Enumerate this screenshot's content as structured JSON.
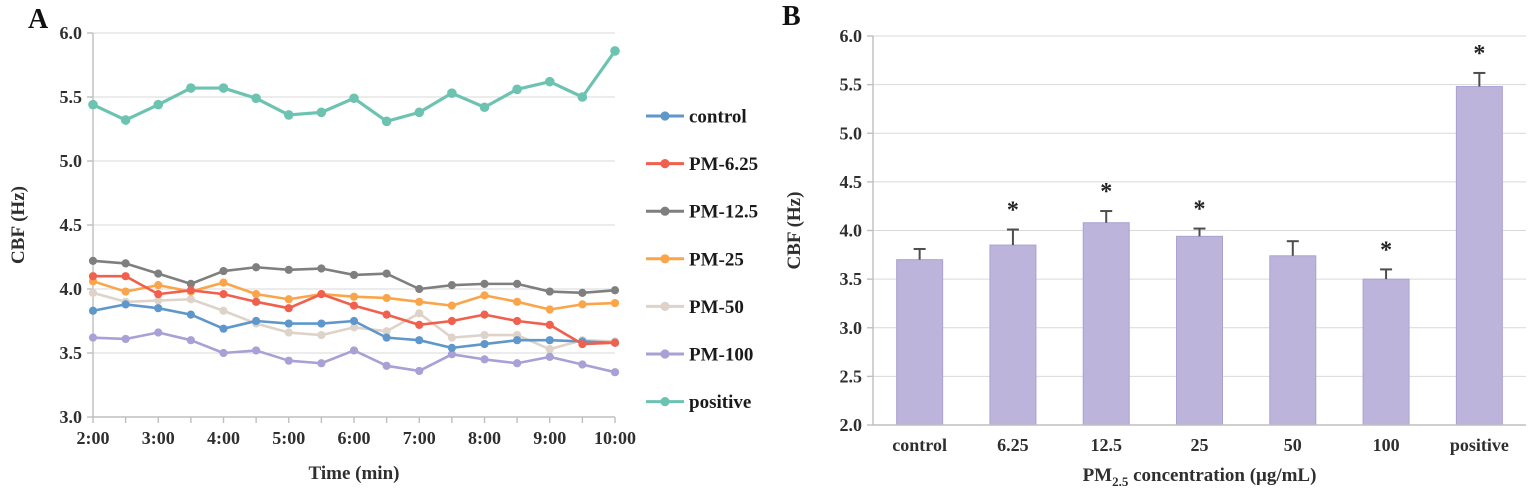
{
  "figure": {
    "panel_a_label": "A",
    "panel_b_label": "B"
  },
  "colors": {
    "background": "#ffffff",
    "gridline": "#d9d9d9",
    "axis": "#bfbfbf",
    "error_bar": "#4d4d4d",
    "tick_text": "#2f2f2f",
    "bar_fill": "#bdb4dc",
    "bar_edge": "#aba1d3"
  },
  "chart_data": [
    {
      "type": "line",
      "panel": "A",
      "title": "",
      "xlabel": "Time (min)",
      "ylabel": "CBF (Hz)",
      "ylim": [
        3.0,
        6.0
      ],
      "ytick_step": 0.5,
      "y_tick_labels": [
        "3.0",
        "3.5",
        "4.0",
        "4.5",
        "5.0",
        "5.5",
        "6.0"
      ],
      "x": [
        "2:00",
        "2:30",
        "3:00",
        "3:30",
        "4:00",
        "4:30",
        "5:00",
        "5:30",
        "6:00",
        "6:30",
        "7:00",
        "7:30",
        "8:00",
        "8:30",
        "9:00",
        "9:30",
        "10:00"
      ],
      "x_tick_labels": [
        "2:00",
        "3:00",
        "4:00",
        "5:00",
        "6:00",
        "7:00",
        "8:00",
        "9:00",
        "10:00"
      ],
      "grid": true,
      "legend_position": "right-outside",
      "marker": "circle",
      "series": [
        {
          "name": "control",
          "color": "#6097cb",
          "values": [
            3.83,
            3.88,
            3.85,
            3.8,
            3.69,
            3.75,
            3.73,
            3.73,
            3.75,
            3.62,
            3.6,
            3.54,
            3.57,
            3.6,
            3.6,
            3.59,
            3.58
          ]
        },
        {
          "name": "PM-6.25",
          "color": "#f0604d",
          "values": [
            4.1,
            4.1,
            3.96,
            3.99,
            3.96,
            3.9,
            3.85,
            3.96,
            3.87,
            3.8,
            3.72,
            3.75,
            3.8,
            3.75,
            3.72,
            3.57,
            3.58
          ]
        },
        {
          "name": "PM-12.5",
          "color": "#7f7f7f",
          "values": [
            4.22,
            4.2,
            4.12,
            4.04,
            4.14,
            4.17,
            4.15,
            4.16,
            4.11,
            4.12,
            4.0,
            4.03,
            4.04,
            4.04,
            3.98,
            3.97,
            3.99
          ]
        },
        {
          "name": "PM-25",
          "color": "#faa54a",
          "values": [
            4.06,
            3.98,
            4.03,
            3.98,
            4.05,
            3.96,
            3.92,
            3.96,
            3.94,
            3.93,
            3.9,
            3.87,
            3.95,
            3.9,
            3.84,
            3.88,
            3.89
          ]
        },
        {
          "name": "PM-50",
          "color": "#ded3c9",
          "values": [
            3.97,
            3.9,
            3.91,
            3.92,
            3.83,
            3.73,
            3.66,
            3.64,
            3.7,
            3.67,
            3.81,
            3.62,
            3.64,
            3.64,
            3.53,
            3.6,
            3.59
          ]
        },
        {
          "name": "PM-100",
          "color": "#a9a0d6",
          "values": [
            3.62,
            3.61,
            3.66,
            3.6,
            3.5,
            3.52,
            3.44,
            3.42,
            3.52,
            3.4,
            3.36,
            3.49,
            3.45,
            3.42,
            3.47,
            3.41,
            3.35
          ]
        },
        {
          "name": "positive",
          "color": "#6dc3b1",
          "values": [
            5.44,
            5.32,
            5.44,
            5.57,
            5.57,
            5.49,
            5.36,
            5.38,
            5.49,
            5.31,
            5.38,
            5.53,
            5.42,
            5.56,
            5.62,
            5.5,
            5.86
          ]
        }
      ]
    },
    {
      "type": "bar",
      "panel": "B",
      "title": "",
      "xlabel_parts": {
        "base": "PM",
        "sub": "2.5",
        "rest": " concentration (μg/mL)"
      },
      "ylabel": "CBF (Hz)",
      "ylim": [
        2.0,
        6.0
      ],
      "ytick_step": 0.5,
      "y_tick_labels": [
        "2.0",
        "2.5",
        "3.0",
        "3.5",
        "4.0",
        "4.5",
        "5.0",
        "5.5",
        "6.0"
      ],
      "categories": [
        "control",
        "6.25",
        "12.5",
        "25",
        "50",
        "100",
        "positive"
      ],
      "values": [
        3.7,
        3.85,
        4.08,
        3.94,
        3.74,
        3.5,
        5.48
      ],
      "errors": [
        0.11,
        0.16,
        0.12,
        0.08,
        0.15,
        0.1,
        0.14
      ],
      "significant": [
        false,
        true,
        true,
        true,
        false,
        true,
        true
      ],
      "sig_marker": "*",
      "grid": true
    }
  ]
}
